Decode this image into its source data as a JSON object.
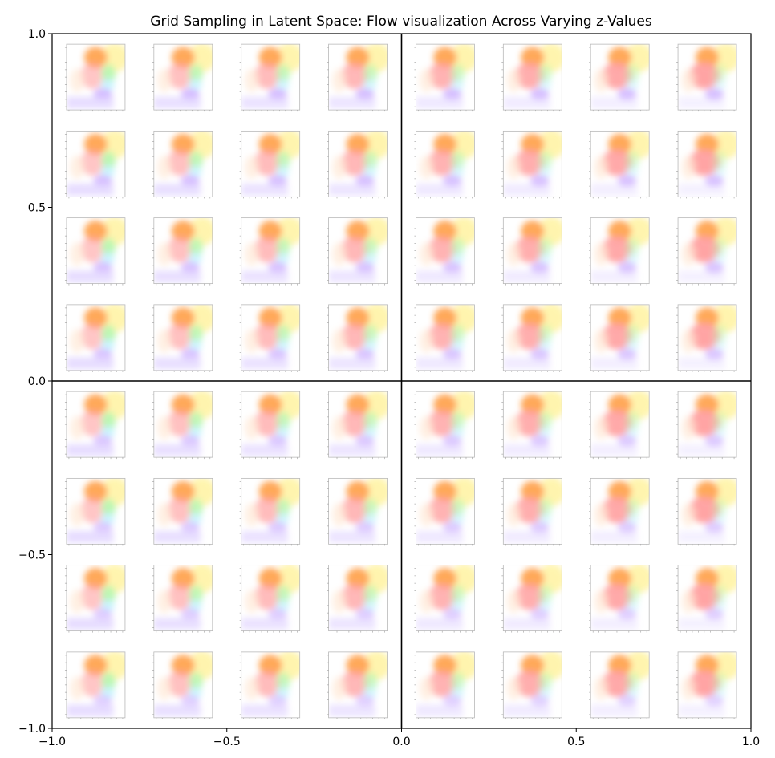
{
  "chart_data": {
    "type": "image-grid",
    "title": "Grid Sampling in Latent Space: Flow visualization Across Varying z-Values",
    "xlabel": "",
    "ylabel": "",
    "xlim": [
      -1.0,
      1.0
    ],
    "ylim": [
      -1.0,
      1.0
    ],
    "x_ticks": [
      -1.0,
      -0.5,
      0.0,
      0.5,
      1.0
    ],
    "x_tick_labels": [
      "−1.0",
      "−0.5",
      "0.0",
      "0.5",
      "1.0"
    ],
    "y_ticks": [
      1.0,
      0.5,
      0.0,
      -0.5,
      -1.0
    ],
    "y_tick_labels": [
      "1.0",
      "0.5",
      "0.0",
      "−0.5",
      "−1.0"
    ],
    "grid_rows": 8,
    "grid_cols": 8,
    "quadrant_lines": {
      "x": 0.0,
      "y": 0.0
    },
    "grid": false,
    "tile_palette": {
      "orange": "#ff9a3c",
      "red": "#ff8f8f",
      "yellow": "#fff3a0",
      "green": "#a8f5a0",
      "cyan": "#b8f0ff",
      "purple": "#c9a8ff",
      "violet": "#d8c8ff",
      "background": "#ffffff"
    }
  }
}
